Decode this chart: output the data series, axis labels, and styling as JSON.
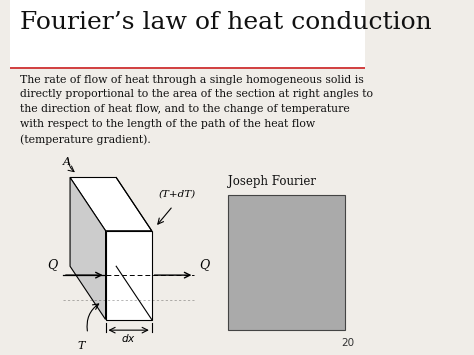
{
  "title": "Fourier’s law of heat conduction",
  "title_fontsize": 18,
  "bg_color": "#f0ede8",
  "separator_color": "#cc2222",
  "body_text": "The rate of flow of heat through a single homogeneous solid is\ndirectly proportional to the area of the section at right angles to\nthe direction of heat flow, and to the change of temperature\nwith respect to the length of the path of the heat flow\n(temperature gradient).",
  "body_fontsize": 7.8,
  "joseph_label": "Joseph Fourier",
  "page_number": "20",
  "diagram_label_A": "A",
  "diagram_label_T": "T",
  "diagram_label_TdT": "(T+dT)",
  "diagram_label_Q_left": "Q",
  "diagram_label_Q_right": "Q"
}
